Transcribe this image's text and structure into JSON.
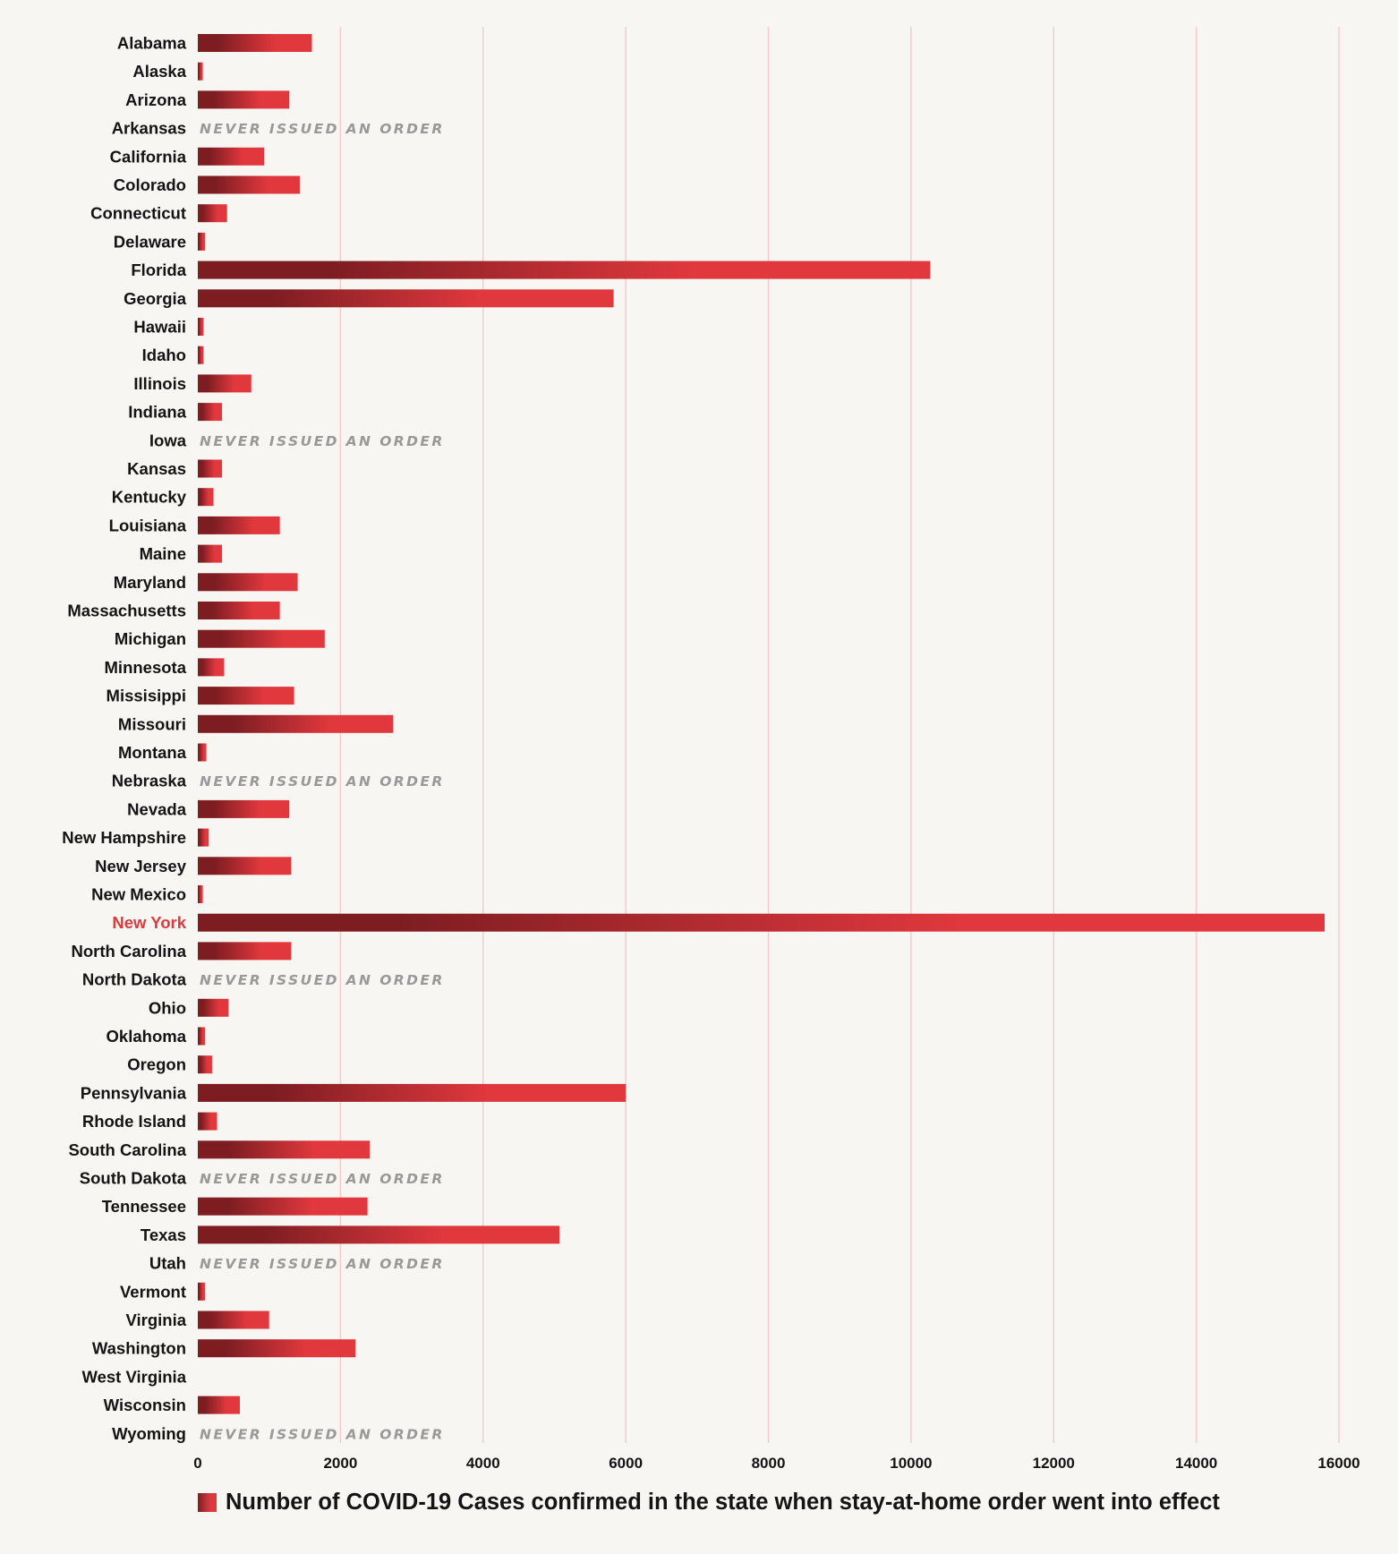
{
  "chart_data": {
    "type": "bar",
    "orientation": "horizontal",
    "xlim": [
      0,
      16000
    ],
    "x_ticks": [
      0,
      2000,
      4000,
      6000,
      8000,
      10000,
      12000,
      14000,
      16000
    ],
    "grid": true,
    "legend_position": "bottom",
    "series": [
      {
        "name": "Number of COVID-19 Cases confirmed in the state when stay-at-home order went into effect"
      }
    ],
    "never_issued_label": "NEVER ISSUED AN ORDER",
    "highlight_category": "New York",
    "colors": {
      "bar_start": "#7d1d22",
      "bar_end": "#e0383d",
      "highlight_text": "#d93b3e",
      "gridline": "#f0cccf",
      "note_text": "#9a9898",
      "background": "#f8f6f3"
    },
    "categories": [
      {
        "state": "Alabama",
        "value": 1600
      },
      {
        "state": "Alaska",
        "value": 70
      },
      {
        "state": "Arizona",
        "value": 1280
      },
      {
        "state": "Arkansas",
        "value": null,
        "never_issued": true
      },
      {
        "state": "California",
        "value": 930
      },
      {
        "state": "Colorado",
        "value": 1430
      },
      {
        "state": "Connecticut",
        "value": 410
      },
      {
        "state": "Delaware",
        "value": 100
      },
      {
        "state": "Florida",
        "value": 10270
      },
      {
        "state": "Georgia",
        "value": 5830
      },
      {
        "state": "Hawaii",
        "value": 80
      },
      {
        "state": "Idaho",
        "value": 80
      },
      {
        "state": "Illinois",
        "value": 750
      },
      {
        "state": "Indiana",
        "value": 340
      },
      {
        "state": "Iowa",
        "value": null,
        "never_issued": true
      },
      {
        "state": "Kansas",
        "value": 340
      },
      {
        "state": "Kentucky",
        "value": 220
      },
      {
        "state": "Louisiana",
        "value": 1150
      },
      {
        "state": "Maine",
        "value": 340
      },
      {
        "state": "Maryland",
        "value": 1400
      },
      {
        "state": "Massachusetts",
        "value": 1150
      },
      {
        "state": "Michigan",
        "value": 1780
      },
      {
        "state": "Minnesota",
        "value": 370
      },
      {
        "state": "Missisippi",
        "value": 1350
      },
      {
        "state": "Missouri",
        "value": 2740
      },
      {
        "state": "Montana",
        "value": 120
      },
      {
        "state": "Nebraska",
        "value": null,
        "never_issued": true
      },
      {
        "state": "Nevada",
        "value": 1280
      },
      {
        "state": "New Hampshire",
        "value": 150
      },
      {
        "state": "New Jersey",
        "value": 1310
      },
      {
        "state": "New Mexico",
        "value": 70
      },
      {
        "state": "New York",
        "value": 15800
      },
      {
        "state": "North Carolina",
        "value": 1310
      },
      {
        "state": "North Dakota",
        "value": null,
        "never_issued": true
      },
      {
        "state": "Ohio",
        "value": 430
      },
      {
        "state": "Oklahoma",
        "value": 100
      },
      {
        "state": "Oregon",
        "value": 200
      },
      {
        "state": "Pennsylvania",
        "value": 6000
      },
      {
        "state": "Rhode Island",
        "value": 270
      },
      {
        "state": "South Carolina",
        "value": 2410
      },
      {
        "state": "South Dakota",
        "value": null,
        "never_issued": true
      },
      {
        "state": "Tennessee",
        "value": 2380
      },
      {
        "state": "Texas",
        "value": 5070
      },
      {
        "state": "Utah",
        "value": null,
        "never_issued": true
      },
      {
        "state": "Vermont",
        "value": 100
      },
      {
        "state": "Virginia",
        "value": 1000
      },
      {
        "state": "Washington",
        "value": 2210
      },
      {
        "state": "West Virginia",
        "value": 0
      },
      {
        "state": "Wisconsin",
        "value": 590
      },
      {
        "state": "Wyoming",
        "value": null,
        "never_issued": true
      }
    ]
  }
}
